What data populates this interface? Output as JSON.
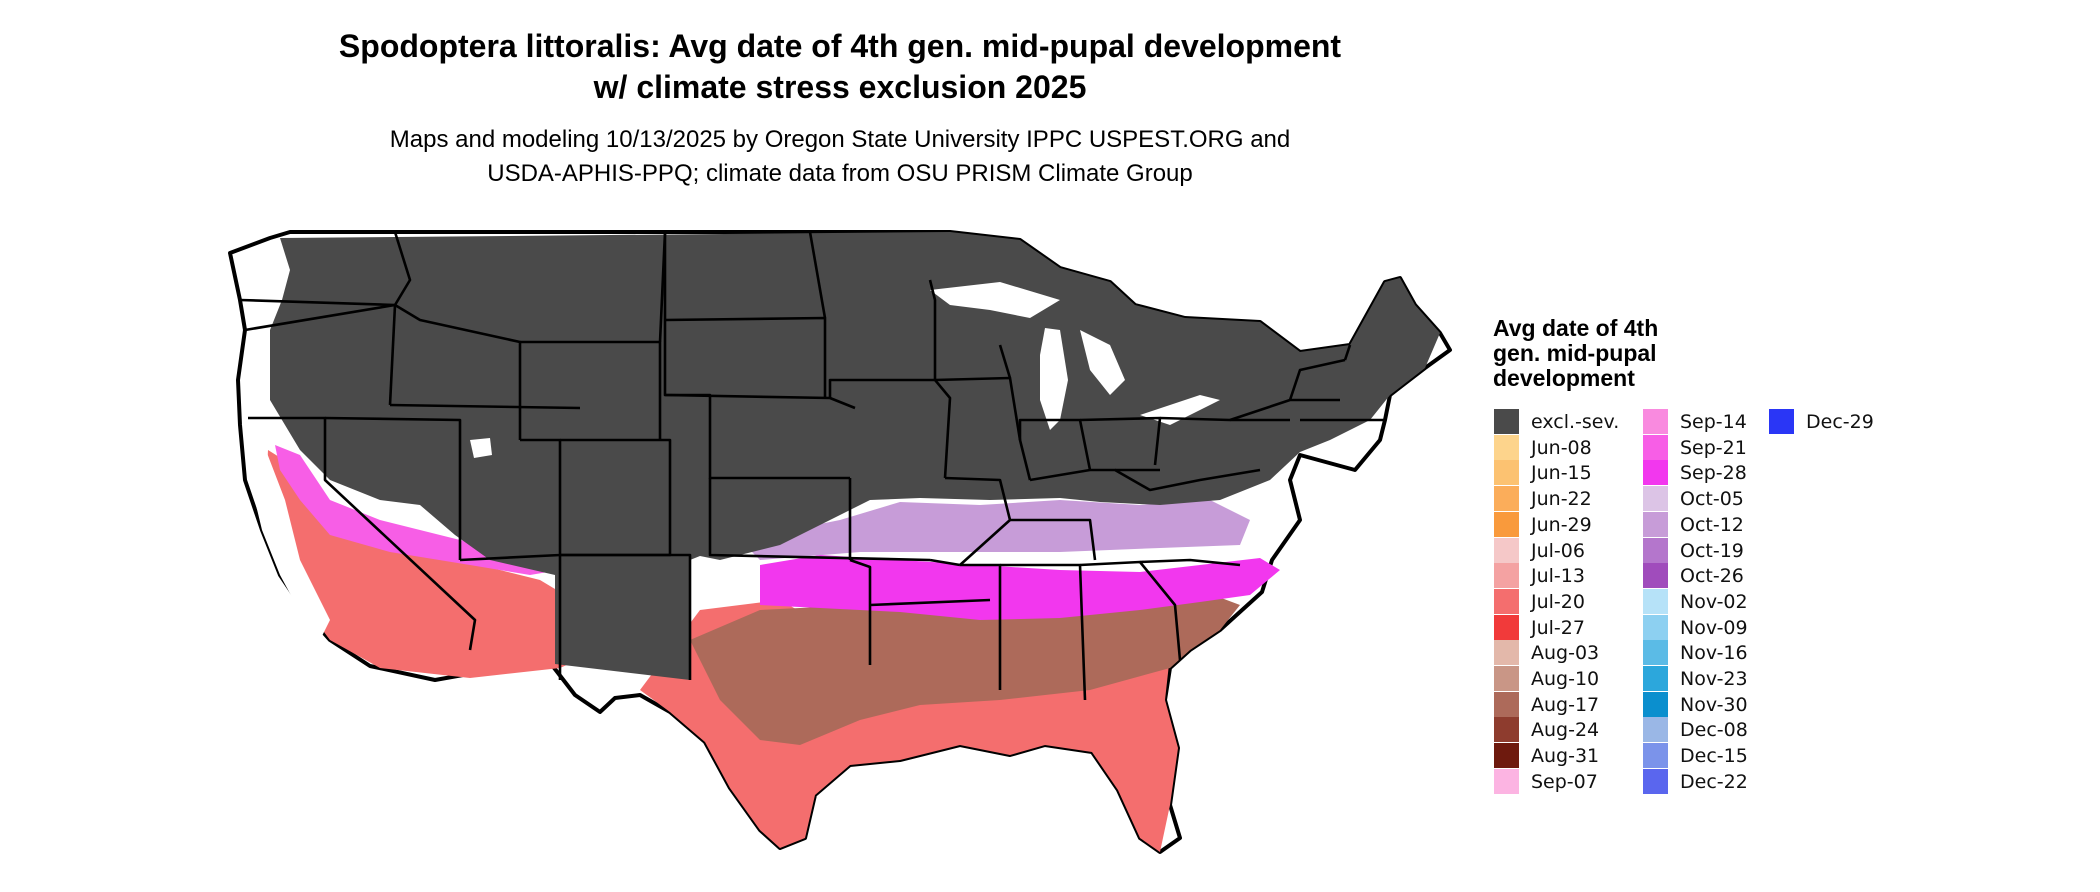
{
  "header": {
    "title_line1": "Spodoptera littoralis: Avg date of 4th gen. mid-pupal development",
    "title_line2": "w/ climate stress exclusion 2025",
    "subtitle_line1": "Maps and modeling 10/13/2025 by Oregon State University IPPC USPEST.ORG and",
    "subtitle_line2": "USDA-APHIS-PPQ; climate data from OSU PRISM Climate Group"
  },
  "legend": {
    "title_line1": "Avg date of 4th",
    "title_line2": "gen. mid-pupal",
    "title_line3": "development",
    "columns": [
      [
        {
          "label": "excl.-sev.",
          "color": "#4a4a4a"
        },
        {
          "label": "Jun-08",
          "color": "#fdd48c"
        },
        {
          "label": "Jun-15",
          "color": "#fcc271"
        },
        {
          "label": "Jun-22",
          "color": "#fbad5a"
        },
        {
          "label": "Jun-29",
          "color": "#f99a3c"
        },
        {
          "label": "Jul-06",
          "color": "#f5c8c8"
        },
        {
          "label": "Jul-13",
          "color": "#f4a2a2"
        },
        {
          "label": "Jul-20",
          "color": "#f46e6e"
        },
        {
          "label": "Jul-27",
          "color": "#f13a3a"
        },
        {
          "label": "Aug-03",
          "color": "#e3b8aa"
        },
        {
          "label": "Aug-10",
          "color": "#c99686"
        },
        {
          "label": "Aug-17",
          "color": "#ad6a5a"
        },
        {
          "label": "Aug-24",
          "color": "#8e3c2e"
        },
        {
          "label": "Aug-31",
          "color": "#6e1a0e"
        },
        {
          "label": "Sep-07",
          "color": "#fcb4e2"
        }
      ],
      [
        {
          "label": "Sep-14",
          "color": "#f98adf"
        },
        {
          "label": "Sep-21",
          "color": "#f75ee6"
        },
        {
          "label": "Sep-28",
          "color": "#f237ee"
        },
        {
          "label": "Oct-05",
          "color": "#dcc4e6"
        },
        {
          "label": "Oct-12",
          "color": "#c79cd8"
        },
        {
          "label": "Oct-19",
          "color": "#b476cc"
        },
        {
          "label": "Oct-26",
          "color": "#a04cbc"
        },
        {
          "label": "Nov-02",
          "color": "#b6e2f8"
        },
        {
          "label": "Nov-09",
          "color": "#8dd0f1"
        },
        {
          "label": "Nov-16",
          "color": "#5bbbe6"
        },
        {
          "label": "Nov-23",
          "color": "#2ca7dc"
        },
        {
          "label": "Nov-30",
          "color": "#0b8fce"
        },
        {
          "label": "Dec-08",
          "color": "#9ab7e6"
        },
        {
          "label": "Dec-15",
          "color": "#7b93ea"
        },
        {
          "label": "Dec-22",
          "color": "#5a66ee"
        }
      ],
      [
        {
          "label": "Dec-29",
          "color": "#2a36f6"
        }
      ]
    ]
  }
}
